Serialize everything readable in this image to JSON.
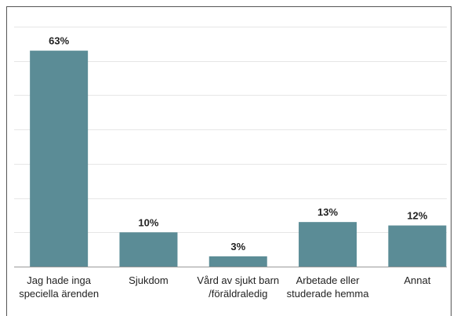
{
  "chart_data": {
    "type": "bar",
    "categories": [
      [
        "Jag hade inga",
        "speciella ärenden"
      ],
      [
        "Sjukdom"
      ],
      [
        "Vård av sjukt barn",
        "/föräldraledig"
      ],
      [
        "Arbetade eller",
        "studerade hemma"
      ],
      [
        "Annat"
      ]
    ],
    "values": [
      63,
      10,
      3,
      13,
      12
    ],
    "value_labels": [
      "63%",
      "10%",
      "3%",
      "13%",
      "12%"
    ],
    "color": "#5b8c96",
    "ylim": [
      0,
      70
    ],
    "yticks": [
      0,
      10,
      20,
      30,
      40,
      50,
      60,
      70
    ],
    "grid": true
  }
}
